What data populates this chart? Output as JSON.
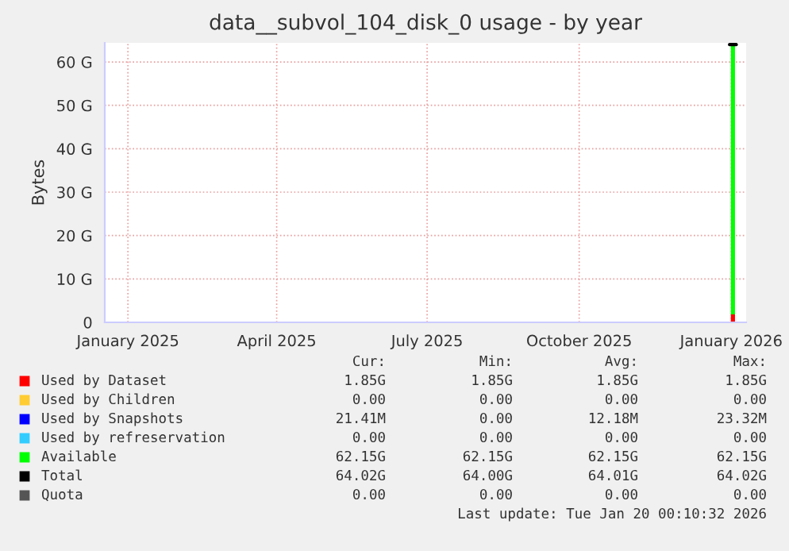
{
  "chart_data": {
    "type": "bar",
    "title": "data__subvol_104_disk_0 usage - by year",
    "ylabel": "Bytes",
    "stacked": true,
    "grid": true,
    "legend": "bottom",
    "xlim": [
      "2024-12-18",
      "2026-01-10"
    ],
    "xticks": [
      {
        "value": "2025-01-01",
        "label": "January 2025"
      },
      {
        "value": "2025-04-01",
        "label": "April 2025"
      },
      {
        "value": "2025-07-01",
        "label": "July 2025"
      },
      {
        "value": "2025-10-01",
        "label": "October 2025"
      },
      {
        "value": "2026-01-01",
        "label": "January 2026"
      }
    ],
    "ylim": [
      0,
      64.4
    ],
    "yticks": [
      {
        "value": 0,
        "label": "0"
      },
      {
        "value": 10,
        "label": "10 G"
      },
      {
        "value": 20,
        "label": "20 G"
      },
      {
        "value": 30,
        "label": "30 G"
      },
      {
        "value": 40,
        "label": "40 G"
      },
      {
        "value": 50,
        "label": "50 G"
      },
      {
        "value": 60,
        "label": "60 G"
      }
    ],
    "x": [
      "2026-01-02"
    ],
    "series": [
      {
        "name": "Used by Dataset",
        "color": "#ff0000",
        "values": [
          1.85
        ]
      },
      {
        "name": "Used by Children",
        "color": "#ffcc33",
        "values": [
          0
        ]
      },
      {
        "name": "Used by Snapshots",
        "color": "#0000ff",
        "values": [
          null
        ]
      },
      {
        "name": "Used by refreservation",
        "color": "#33ccff",
        "values": [
          0
        ]
      },
      {
        "name": "Available",
        "color": "#00ff00",
        "values": [
          62.15
        ]
      },
      {
        "name": "Total",
        "color": "#000000",
        "type": "line",
        "x": [
          "2025-12-31",
          "2026-01-04"
        ],
        "values": [
          64.0,
          64.0
        ]
      },
      {
        "name": "Quota",
        "color": "#555555",
        "type": "line",
        "values": [
          null
        ]
      }
    ],
    "annotations": [
      "Cur:",
      "Min:",
      "Avg:",
      "Max:",
      "1.85G",
      "1.85G",
      "1.85G",
      "1.85G",
      "0.00",
      "0.00",
      "0.00",
      "0.00",
      "21.41M",
      "0.00",
      "12.18M",
      "23.32M",
      "0.00",
      "0.00",
      "0.00",
      "0.00",
      "62.15G",
      "62.15G",
      "62.15G",
      "62.15G",
      "64.02G",
      "64.00G",
      "64.01G",
      "64.02G",
      "0.00",
      "0.00",
      "0.00",
      "0.00",
      "Last update: Tue Jan 20 00:10:32 2026"
    ]
  }
}
